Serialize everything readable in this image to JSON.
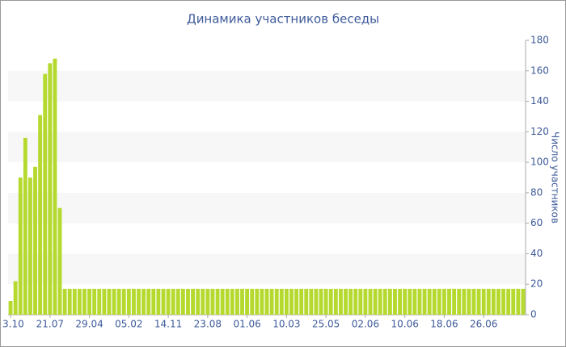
{
  "chart_data": {
    "type": "bar",
    "title": "Динамика участников беседы",
    "y_label": "Число участников",
    "categories": [
      "3.10",
      null,
      null,
      null,
      null,
      null,
      null,
      null,
      "21.07",
      null,
      null,
      null,
      null,
      null,
      null,
      null,
      "29.04",
      null,
      null,
      null,
      null,
      null,
      null,
      null,
      "05.02",
      null,
      null,
      null,
      null,
      null,
      null,
      null,
      "14.11",
      null,
      null,
      null,
      null,
      null,
      null,
      null,
      "23.08",
      null,
      null,
      null,
      null,
      null,
      null,
      null,
      "01.06",
      null,
      null,
      null,
      null,
      null,
      null,
      null,
      "10.03",
      null,
      null,
      null,
      null,
      null,
      null,
      null,
      "25.05",
      null,
      null,
      null,
      null,
      null,
      null,
      null,
      "02.06",
      null,
      null,
      null,
      null,
      null,
      null,
      null,
      "10.06",
      null,
      null,
      null,
      null,
      null,
      null,
      null,
      "18.06",
      null,
      null,
      null,
      null,
      null,
      null,
      null,
      "26.06",
      null,
      null,
      null,
      null,
      null,
      null,
      null,
      null
    ],
    "values": [
      9,
      22,
      90,
      116,
      90,
      97,
      131,
      158,
      165,
      168,
      70,
      17,
      17,
      17,
      17,
      17,
      17,
      17,
      17,
      17,
      17,
      17,
      17,
      17,
      17,
      17,
      17,
      17,
      17,
      17,
      17,
      17,
      17,
      17,
      17,
      17,
      17,
      17,
      17,
      17,
      17,
      17,
      17,
      17,
      17,
      17,
      17,
      17,
      17,
      17,
      17,
      17,
      17,
      17,
      17,
      17,
      17,
      17,
      17,
      17,
      17,
      17,
      17,
      17,
      17,
      17,
      17,
      17,
      17,
      17,
      17,
      17,
      17,
      17,
      17,
      17,
      17,
      17,
      17,
      17,
      17,
      17,
      17,
      17,
      17,
      17,
      17,
      17,
      17,
      17,
      17,
      17,
      17,
      17,
      17,
      17,
      17,
      17,
      17,
      17,
      17,
      17,
      17,
      17,
      17
    ],
    "color": "#b5d92f",
    "ylim": [
      0,
      180
    ],
    "yticks": [
      0,
      20,
      40,
      60,
      80,
      100,
      120,
      140,
      160,
      180
    ],
    "grid": "bands",
    "y_axis_side": "right"
  }
}
